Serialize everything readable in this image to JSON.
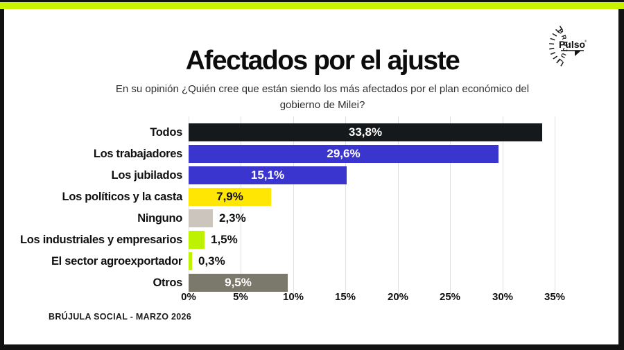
{
  "header": {
    "title": "Afectados por el ajuste",
    "subtitle_line1": "En su opinión ¿Quién cree que están siendo los más afectados por el plan económico del",
    "subtitle_line2": "gobierno de Milei?"
  },
  "logo": {
    "brand": "Pulso",
    "ring_text": "BRÚJULA SOCIAL"
  },
  "footer": {
    "source": "BRÚJULA SOCIAL - MARZO 2026"
  },
  "colors": {
    "accent_green": "#c8f202",
    "frame_black": "#121212",
    "grid_gray": "#e0e0e0"
  },
  "chart_data": {
    "type": "bar",
    "orientation": "horizontal",
    "title": "Afectados por el ajuste",
    "categories": [
      "Todos",
      "Los trabajadores",
      "Los jubilados",
      "Los políticos y la casta",
      "Ninguno",
      "Los industriales y empresarios",
      "El sector agroexportador",
      "Otros"
    ],
    "values": [
      33.8,
      29.6,
      15.1,
      7.9,
      2.3,
      1.5,
      0.3,
      9.5
    ],
    "value_labels": [
      "33,8%",
      "29,6%",
      "15,1%",
      "7,9%",
      "2,3%",
      "1,5%",
      "0,3%",
      "9,5%"
    ],
    "bar_colors": [
      "#16191b",
      "#3b35cf",
      "#3b35cf",
      "#ffe603",
      "#ccc5bd",
      "#bdf202",
      "#bdf202",
      "#7b796b"
    ],
    "value_label_placement": [
      "inside",
      "inside",
      "inside",
      "inside",
      "outside",
      "outside",
      "outside",
      "inside"
    ],
    "value_label_colors": [
      "#ffffff",
      "#ffffff",
      "#ffffff",
      "#111111",
      "#111111",
      "#111111",
      "#111111",
      "#ffffff"
    ],
    "x_ticks": [
      "0%",
      "5%",
      "10%",
      "15%",
      "20%",
      "25%",
      "30%",
      "35%"
    ],
    "xlim": [
      0,
      35
    ],
    "grid": true,
    "legend": "none"
  }
}
